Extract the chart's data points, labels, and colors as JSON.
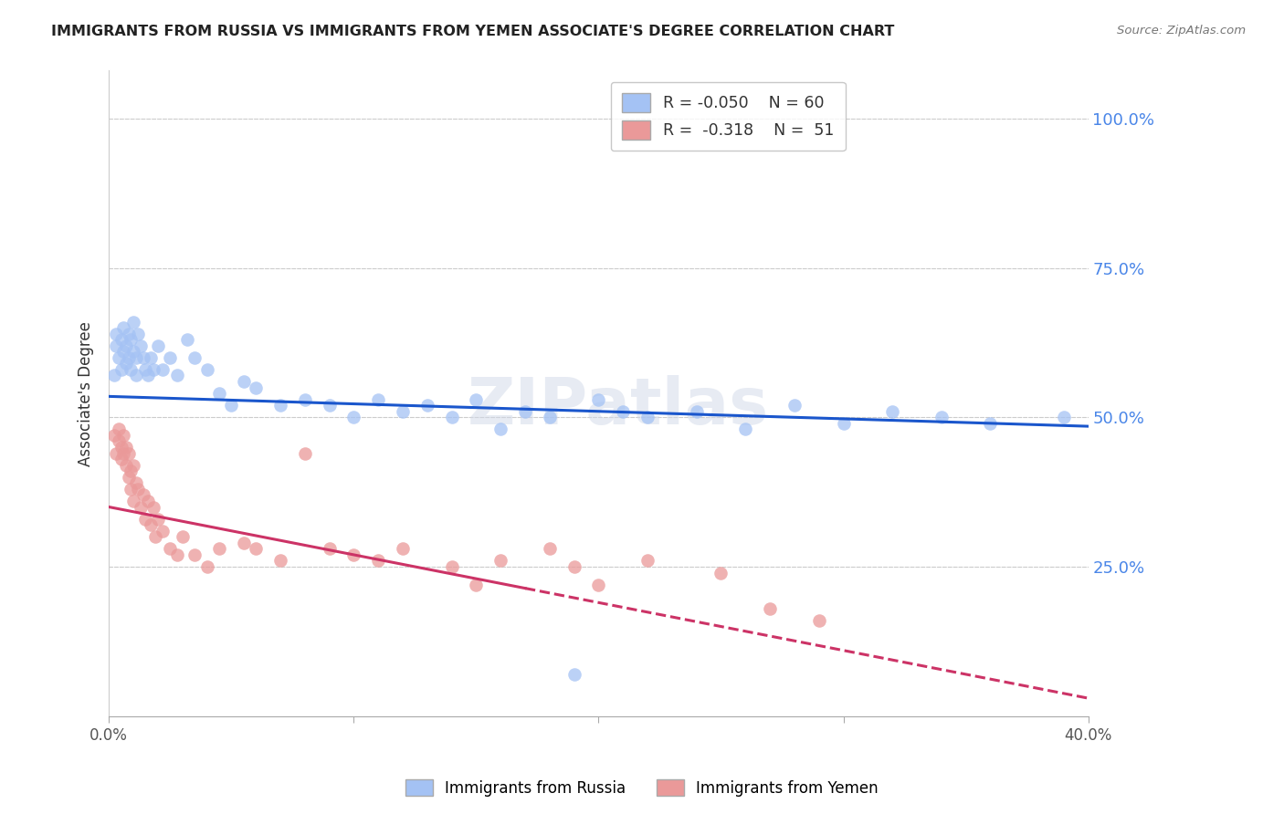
{
  "title": "IMMIGRANTS FROM RUSSIA VS IMMIGRANTS FROM YEMEN ASSOCIATE'S DEGREE CORRELATION CHART",
  "source": "Source: ZipAtlas.com",
  "ylabel": "Associate's Degree",
  "blue_color": "#a4c2f4",
  "pink_color": "#ea9999",
  "blue_line_color": "#1a56cc",
  "pink_line_color": "#cc3366",
  "watermark": "ZIPatlas",
  "background_color": "#ffffff",
  "grid_color": "#cccccc",
  "right_label_color": "#4a86e8",
  "legend_r1": "R = -0.050",
  "legend_n1": "N = 60",
  "legend_r2": "R =  -0.318",
  "legend_n2": "N =  51",
  "russia_x": [
    0.2,
    0.3,
    0.3,
    0.4,
    0.5,
    0.5,
    0.6,
    0.6,
    0.7,
    0.7,
    0.8,
    0.8,
    0.9,
    0.9,
    1.0,
    1.0,
    1.1,
    1.1,
    1.2,
    1.3,
    1.4,
    1.5,
    1.6,
    1.7,
    1.8,
    2.0,
    2.2,
    2.5,
    2.8,
    3.2,
    3.5,
    4.0,
    4.5,
    5.0,
    5.5,
    6.0,
    7.0,
    8.0,
    9.0,
    10.0,
    11.0,
    12.0,
    13.0,
    14.0,
    15.0,
    16.0,
    17.0,
    18.0,
    19.0,
    20.0,
    21.0,
    22.0,
    24.0,
    26.0,
    28.0,
    30.0,
    32.0,
    34.0,
    36.0,
    39.0
  ],
  "russia_y": [
    57,
    62,
    64,
    60,
    58,
    63,
    61,
    65,
    59,
    62,
    60,
    64,
    58,
    63,
    61,
    66,
    60,
    57,
    64,
    62,
    60,
    58,
    57,
    60,
    58,
    62,
    58,
    60,
    57,
    63,
    60,
    58,
    54,
    52,
    56,
    55,
    52,
    53,
    52,
    50,
    53,
    51,
    52,
    50,
    53,
    48,
    51,
    50,
    7,
    53,
    51,
    50,
    51,
    48,
    52,
    49,
    51,
    50,
    49,
    50
  ],
  "yemen_x": [
    0.2,
    0.3,
    0.4,
    0.4,
    0.5,
    0.5,
    0.6,
    0.6,
    0.7,
    0.7,
    0.8,
    0.8,
    0.9,
    0.9,
    1.0,
    1.0,
    1.1,
    1.2,
    1.3,
    1.4,
    1.5,
    1.6,
    1.7,
    1.8,
    1.9,
    2.0,
    2.2,
    2.5,
    2.8,
    3.0,
    3.5,
    4.0,
    4.5,
    5.5,
    6.0,
    7.0,
    8.0,
    9.0,
    10.0,
    11.0,
    12.0,
    14.0,
    15.0,
    16.0,
    18.0,
    19.0,
    20.0,
    22.0,
    25.0,
    27.0,
    29.0
  ],
  "yemen_y": [
    47,
    44,
    46,
    48,
    43,
    45,
    47,
    44,
    45,
    42,
    40,
    44,
    38,
    41,
    36,
    42,
    39,
    38,
    35,
    37,
    33,
    36,
    32,
    35,
    30,
    33,
    31,
    28,
    27,
    30,
    27,
    25,
    28,
    29,
    28,
    26,
    44,
    28,
    27,
    26,
    28,
    25,
    22,
    26,
    28,
    25,
    22,
    26,
    24,
    18,
    16
  ],
  "blue_line_x0": 0,
  "blue_line_y0": 53.5,
  "blue_line_x1": 40,
  "blue_line_y1": 48.5,
  "pink_line_x0": 0,
  "pink_line_y0": 35,
  "pink_line_x1": 40,
  "pink_line_y1": 3,
  "pink_solid_end": 17,
  "xlim": [
    0,
    40
  ],
  "ylim": [
    0,
    108
  ]
}
